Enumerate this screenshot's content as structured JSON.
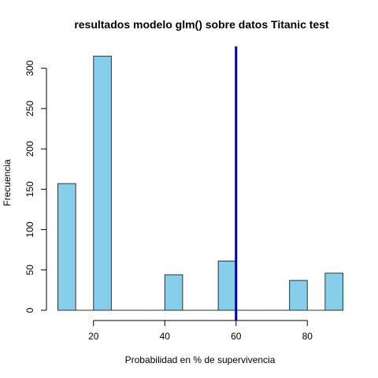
{
  "chart_data": {
    "type": "bar",
    "title": "resultados modelo glm() sobre datos Titanic test",
    "xlabel": "Probabilidad en % de supervivencia",
    "ylabel": "Frecuencia",
    "xlim": [
      10,
      90
    ],
    "ylim": [
      0,
      315
    ],
    "x_ticks": [
      20,
      40,
      60,
      80
    ],
    "y_ticks": [
      0,
      50,
      100,
      150,
      200,
      250,
      300
    ],
    "bins": [
      {
        "start": 10,
        "end": 15,
        "count": 157
      },
      {
        "start": 15,
        "end": 20,
        "count": 0
      },
      {
        "start": 20,
        "end": 25,
        "count": 315
      },
      {
        "start": 25,
        "end": 30,
        "count": 0
      },
      {
        "start": 30,
        "end": 35,
        "count": 0
      },
      {
        "start": 35,
        "end": 40,
        "count": 0
      },
      {
        "start": 40,
        "end": 45,
        "count": 44
      },
      {
        "start": 45,
        "end": 50,
        "count": 0
      },
      {
        "start": 50,
        "end": 55,
        "count": 0
      },
      {
        "start": 55,
        "end": 60,
        "count": 61
      },
      {
        "start": 60,
        "end": 65,
        "count": 0
      },
      {
        "start": 65,
        "end": 70,
        "count": 0
      },
      {
        "start": 70,
        "end": 75,
        "count": 0
      },
      {
        "start": 75,
        "end": 80,
        "count": 37
      },
      {
        "start": 80,
        "end": 85,
        "count": 0
      },
      {
        "start": 85,
        "end": 90,
        "count": 46
      }
    ],
    "reference_line_x": 60,
    "colors": {
      "bar_fill": "#87ceeb",
      "bar_stroke": "#333333",
      "reference_line": "#00008b",
      "axis": "#000000"
    },
    "grid": false,
    "legend": "none"
  }
}
